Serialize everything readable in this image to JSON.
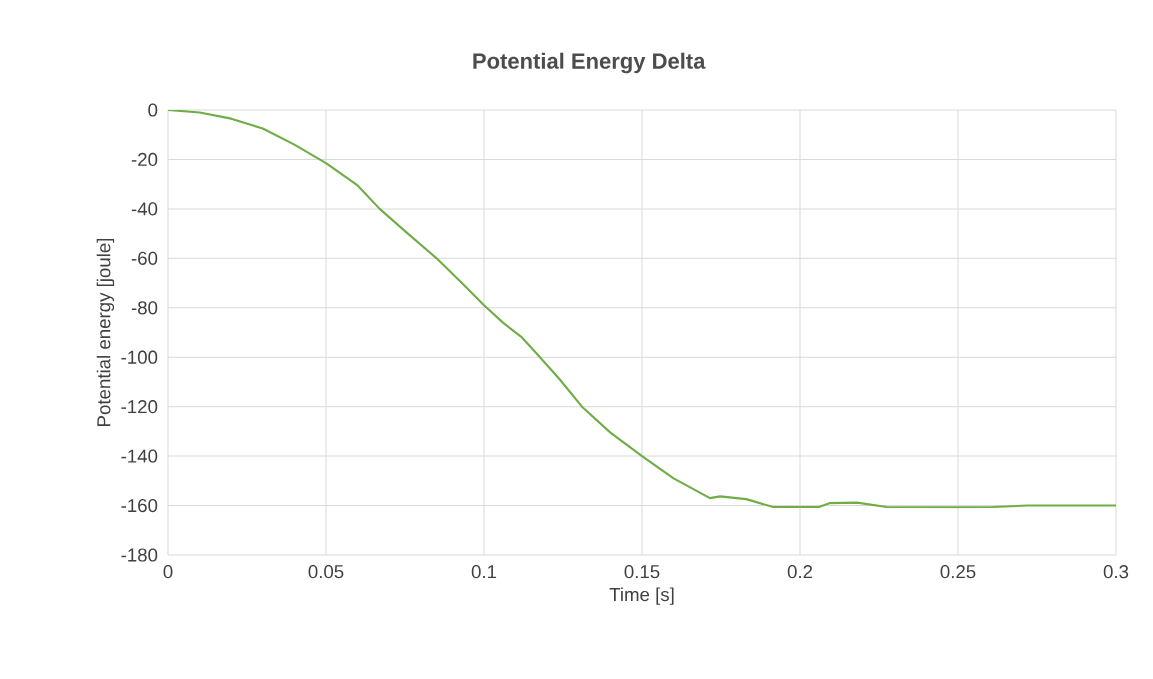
{
  "chart_data": {
    "type": "line",
    "title": "Potential Energy Delta",
    "xlabel": "Time [s]",
    "ylabel": "Potential energy [joule]",
    "series": [
      {
        "color": "#70ad47",
        "x": [
          0,
          0.01,
          0.02,
          0.03,
          0.04,
          0.05,
          0.06,
          0.067,
          0.075,
          0.085,
          0.093,
          0.1,
          0.106,
          0.112,
          0.117,
          0.124,
          0.131,
          0.14,
          0.15,
          0.16,
          0.1715,
          0.1747,
          0.183,
          0.1915,
          0.206,
          0.2095,
          0.218,
          0.2275,
          0.25,
          0.261,
          0.272,
          0.3
        ],
        "values": [
          0,
          -1,
          -3.5,
          -7.5,
          -14,
          -21.5,
          -30.5,
          -40,
          -49,
          -60,
          -70,
          -79,
          -86,
          -92,
          -99,
          -109,
          -120,
          -130.5,
          -140,
          -149,
          -157,
          -156.3,
          -157.4,
          -160.6,
          -160.6,
          -159,
          -158.8,
          -160.6,
          -160.7,
          -160.6,
          -160,
          -160
        ]
      }
    ],
    "xlim": [
      0,
      0.3
    ],
    "ylim": [
      -180,
      0
    ],
    "xticks": [
      0,
      0.05,
      0.1,
      0.15,
      0.2,
      0.25,
      0.3
    ],
    "yticks": [
      0,
      -20,
      -40,
      -60,
      -80,
      -100,
      -120,
      -140,
      -160,
      -180
    ],
    "grid": true,
    "marker": "none",
    "line_style": "solid"
  }
}
